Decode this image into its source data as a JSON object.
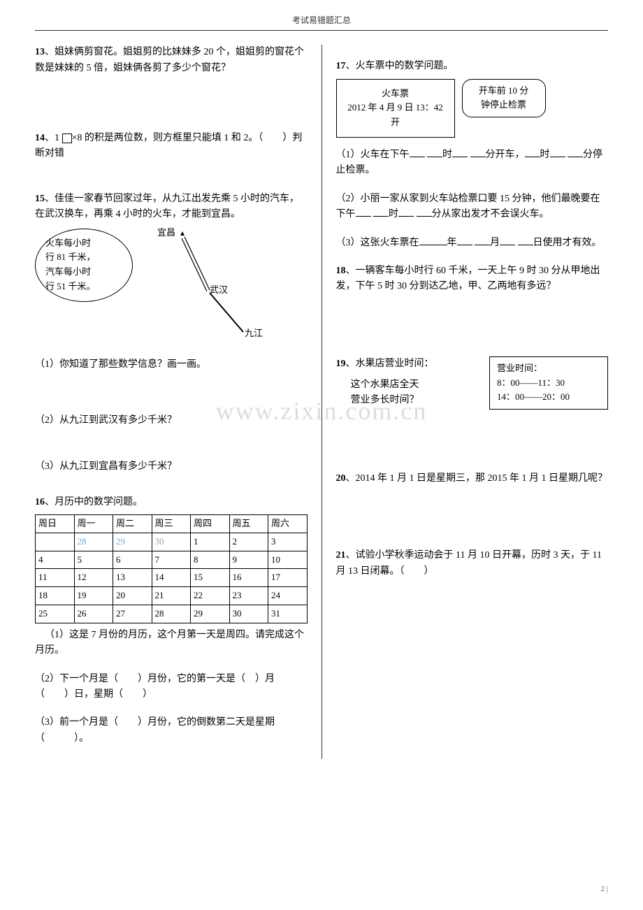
{
  "header": "考试易错题汇总",
  "footer": "2 |",
  "watermark": "www.zixin.com.cn",
  "left": {
    "p13": {
      "num": "13",
      "text": "、姐妹俩剪窗花。姐姐剪的比妹妹多 20 个，姐姐剪的窗花个数是妹妹的 5 倍，姐妹俩各剪了多少个窗花？"
    },
    "p14": {
      "num": "14",
      "prefix": "、1 ",
      "suffix": "×8 的积是两位数，则方框里只能填 1 和 2。（　　）判断对错"
    },
    "p15": {
      "num": "15",
      "text": "、佳佳一家春节回家过年，从九江出发先乘 5 小时的汽车，在武汉换车，再乘 4 小时的火车，才能到宜昌。",
      "oval_l1": "火车每小时",
      "oval_l2": "行 81 千米，",
      "oval_l3": "汽车每小时",
      "oval_l4": "行 51 千米。",
      "city_yc": "宜昌",
      "city_wh": "武汉",
      "city_jj": "九江",
      "q1": "（1）你知道了那些数学信息？画一画。",
      "q2": "（2）从九江到武汉有多少千米？",
      "q3": "（3）从九江到宜昌有多少千米？"
    },
    "p16": {
      "num": "16",
      "text": "、月历中的数学问题。",
      "headers": [
        "周日",
        "周一",
        "周二",
        "周三",
        "周四",
        "周五",
        "周六"
      ],
      "rows": [
        [
          "",
          "28",
          "29",
          "30",
          "1",
          "2",
          "3"
        ],
        [
          "4",
          "5",
          "6",
          "7",
          "8",
          "9",
          "10"
        ],
        [
          "11",
          "12",
          "13",
          "14",
          "15",
          "16",
          "17"
        ],
        [
          "18",
          "19",
          "20",
          "21",
          "22",
          "23",
          "24"
        ],
        [
          "25",
          "26",
          "27",
          "28",
          "29",
          "30",
          "31"
        ]
      ],
      "prev_month_cells": [
        [
          0,
          1
        ],
        [
          0,
          2
        ],
        [
          0,
          3
        ]
      ],
      "q1": "（1）这是 7 月份的月历，这个月第一天是周四。请完成这个月历。",
      "q2": "（2）下一个月是（　　）月份，它的第一天是（　）月（　　）日，星期（　　）",
      "q3": "（3）前一个月是（　　）月份，它的倒数第二天是星期（　　　）。"
    }
  },
  "right": {
    "p17": {
      "num": "17",
      "text": "、火车票中的数学问题。",
      "ticket_l1": "火车票",
      "ticket_l2": "2012 年 4 月 9 日 13：42 开",
      "speech_l1": "开车前 10 分",
      "speech_l2": "钟停止检票",
      "q1a": "（1）火车在下午",
      "q1b": "时",
      "q1c": "分开车，",
      "q1d": "时",
      "q1e": "分停止检票。",
      "q2a": "（2）小丽一家从家到火车站检票口要 15 分钟，他们最晚要在下午",
      "q2b": "时",
      "q2c": "分从家出发才不会误火车。",
      "q3a": "（3）这张火车票在",
      "q3b": "年",
      "q3c": "月",
      "q3d": "日使用才有效。"
    },
    "p18": {
      "num": "18",
      "text": "、一辆客车每小时行 60 千米，一天上午 9 时 30 分从甲地出发，下午 5 时 30 分到达乙地，甲、乙两地有多远？"
    },
    "p19": {
      "num": "19",
      "text": "、水果店营业时间：",
      "left_l1": "这个水果店全天",
      "left_l2": "营业多长时间？",
      "box_title": "营业时间：",
      "box_l1": "8：00——11：30",
      "box_l2": "14：00——20：00"
    },
    "p20": {
      "num": "20",
      "text": "、2014 年 1 月 1 日是星期三，那 2015 年 1 月 1 日星期几呢？"
    },
    "p21": {
      "num": "21",
      "text": "、试验小学秋季运动会于 11 月 10 日开幕，历时 3 天，于 11 月 13 日闭幕。（　　）"
    }
  },
  "svg": {
    "route_stroke": "#000000",
    "route_width": 1.5
  }
}
